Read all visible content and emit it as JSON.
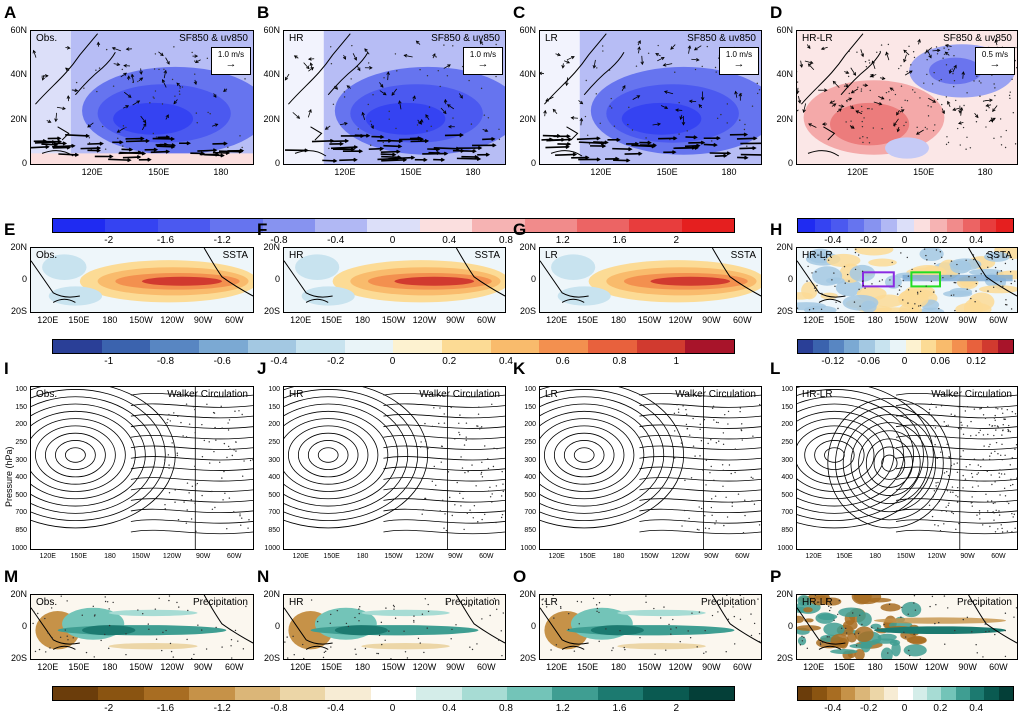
{
  "rows": [
    {
      "id": "sf850",
      "panels": [
        {
          "letter": "A",
          "left": "Obs.",
          "right": "SF850 & uv850",
          "vector_ref": "1.0 m/s"
        },
        {
          "letter": "B",
          "left": "HR",
          "right": "SF850 & uv850",
          "vector_ref": "1.0 m/s"
        },
        {
          "letter": "C",
          "left": "LR",
          "right": "SF850 & uv850",
          "vector_ref": "1.0 m/s"
        },
        {
          "letter": "D",
          "left": "HR-LR",
          "right": "SF850 & uv850",
          "vector_ref": "0.5 m/s"
        }
      ],
      "y_ticks": [
        "60N",
        "40N",
        "20N",
        "0"
      ],
      "x_ticks": [
        "120E",
        "150E",
        "180"
      ],
      "colorbar_main": [
        "-2",
        "-1.6",
        "-1.2",
        "-0.8",
        "-0.4",
        "0",
        "0.4",
        "0.8",
        "1.2",
        "1.6",
        "2"
      ],
      "colorbar_diff": [
        "-0.4",
        "-0.2",
        "0",
        "0.2",
        "0.4"
      ]
    },
    {
      "id": "ssta",
      "panels": [
        {
          "letter": "E",
          "left": "Obs.",
          "right": "SSTA"
        },
        {
          "letter": "F",
          "left": "HR",
          "right": "SSTA"
        },
        {
          "letter": "G",
          "left": "LR",
          "right": "SSTA"
        },
        {
          "letter": "H",
          "left": "HR-LR",
          "right": "SSTA"
        }
      ],
      "y_ticks": [
        "20N",
        "0",
        "20S"
      ],
      "x_ticks": [
        "120E",
        "150E",
        "180",
        "150W",
        "120W",
        "90W",
        "60W"
      ],
      "colorbar_main": [
        "-1",
        "-0.8",
        "-0.6",
        "-0.4",
        "-0.2",
        "0",
        "0.2",
        "0.4",
        "0.6",
        "0.8",
        "1"
      ],
      "colorbar_diff": [
        "-0.12",
        "-0.06",
        "0",
        "0.06",
        "0.12"
      ]
    },
    {
      "id": "walker",
      "panels": [
        {
          "letter": "I",
          "left": "Obs.",
          "right": "Walker Circulation"
        },
        {
          "letter": "J",
          "left": "HR",
          "right": "Walker Circulation"
        },
        {
          "letter": "K",
          "left": "LR",
          "right": "Walker Circulation"
        },
        {
          "letter": "L",
          "left": "HR-LR",
          "right": "Walker Circulation"
        }
      ],
      "y_label": "Pressure (hPa)",
      "y_ticks": [
        "100",
        "150",
        "200",
        "250",
        "300",
        "400",
        "500",
        "700",
        "850",
        "1000"
      ],
      "x_ticks": [
        "120E",
        "150E",
        "180",
        "150W",
        "120W",
        "90W",
        "60W"
      ]
    },
    {
      "id": "precip",
      "panels": [
        {
          "letter": "M",
          "left": "Obs.",
          "right": "Precipitation"
        },
        {
          "letter": "N",
          "left": "HR",
          "right": "Precipitation"
        },
        {
          "letter": "O",
          "left": "LR",
          "right": "Precipitation"
        },
        {
          "letter": "P",
          "left": "HR-LR",
          "right": "Precipitation"
        }
      ],
      "y_ticks": [
        "20N",
        "0",
        "20S"
      ],
      "x_ticks": [
        "120E",
        "150E",
        "180",
        "150W",
        "120W",
        "90W",
        "60W"
      ],
      "colorbar_main": [
        "-2",
        "-1.6",
        "-1.2",
        "-0.8",
        "-0.4",
        "0",
        "0.4",
        "0.8",
        "1.2",
        "1.6",
        "2"
      ],
      "colorbar_diff": [
        "-0.4",
        "-0.2",
        "0",
        "0.2",
        "0.4"
      ]
    }
  ],
  "colors": {
    "bwr": [
      "#1f2bf2",
      "#3543f2",
      "#4b59f0",
      "#6674ef",
      "#8793f0",
      "#b1b8f4",
      "#dcdff9",
      "#fbdfdf",
      "#f6b3b3",
      "#f18b8b",
      "#ec6464",
      "#e83d3d",
      "#e51f1f"
    ],
    "rdbu": [
      "#2a3f97",
      "#3b63ae",
      "#5886c2",
      "#7ba9d3",
      "#a3c8e2",
      "#c8e3ef",
      "#e9f4f8",
      "#fdf2d0",
      "#fcdb95",
      "#f9bb6c",
      "#f3904f",
      "#e8613d",
      "#d13a2f",
      "#a8142a"
    ],
    "brbg": [
      "#6b3d0b",
      "#8a5411",
      "#a86d22",
      "#c69248",
      "#dbb678",
      "#ecd6a7",
      "#f7ecd4",
      "#ffffff",
      "#d4ede9",
      "#a7dcd4",
      "#73c4b8",
      "#3f9e92",
      "#1c7a70",
      "#0a5a51",
      "#043f38"
    ]
  }
}
